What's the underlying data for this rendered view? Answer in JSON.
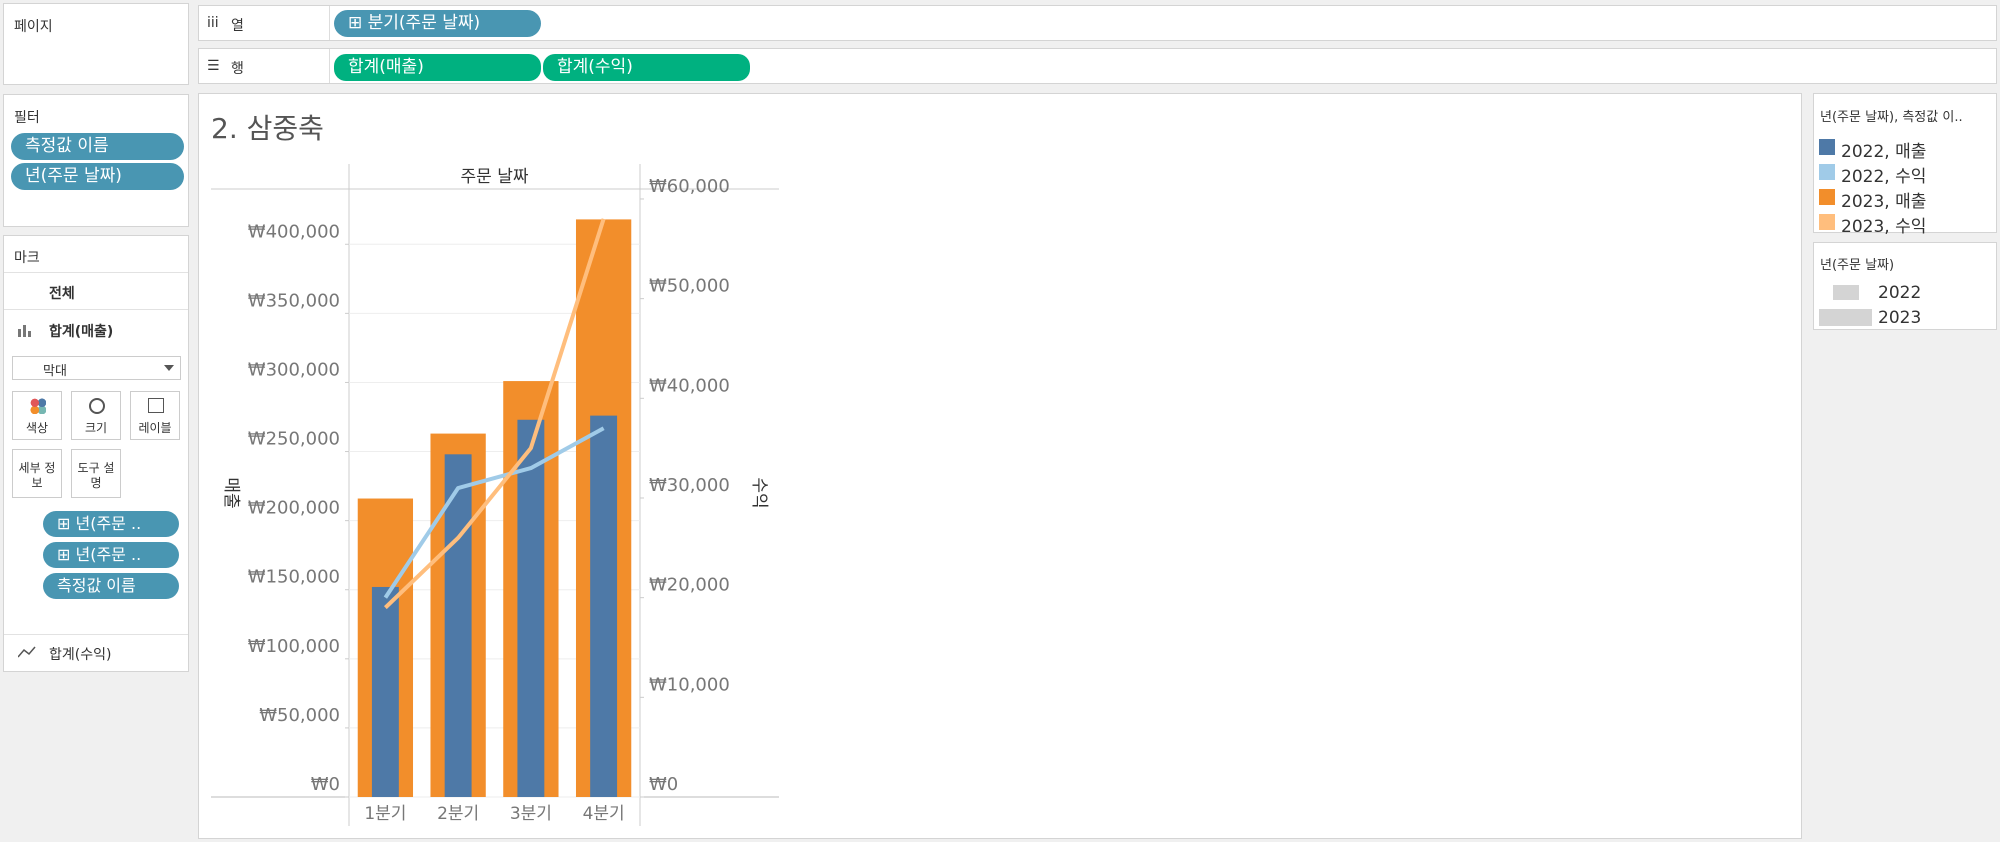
{
  "pages": {
    "title": "페이지"
  },
  "columns_shelf": {
    "label": "열",
    "pills": [
      "⊞ 분기(주문 날짜)"
    ]
  },
  "rows_shelf": {
    "label": "행",
    "pills": [
      "합계(매출)",
      "합계(수익)"
    ]
  },
  "filters": {
    "title": "필터",
    "pills": [
      "측정값 이름",
      "년(주문 날짜)"
    ]
  },
  "marks": {
    "title": "마크",
    "all": "전체",
    "cards": [
      "합계(매출)",
      "합계(수익)"
    ],
    "mark_type": "막대",
    "buttons": [
      "색상",
      "크기",
      "레이블",
      "세부 정보",
      "도구 설명"
    ],
    "pills": [
      "⊞ 년(주문 ..",
      "⊞ 년(주문 ..",
      "측정값 이름"
    ]
  },
  "size_legend": {
    "title": "년(주문 날짜)",
    "items": [
      "2022",
      "2023"
    ]
  },
  "chart_data": {
    "type": "combo",
    "title": "2. 삼중축",
    "x_header": "주문 날짜",
    "ylabel": "매출",
    "y2label": "수익",
    "legend_title": "년(주문 날짜), 측정값 이..",
    "categories": [
      "1분기",
      "2분기",
      "3분기",
      "4분기"
    ],
    "series": [
      {
        "name": "2023, 매출",
        "color": "#f28e2b",
        "type": "bar",
        "values": [
          216000,
          263000,
          301000,
          418000
        ]
      },
      {
        "name": "2022, 매출",
        "color": "#4e79a7",
        "type": "bar",
        "values": [
          152000,
          248000,
          273000,
          276000
        ]
      },
      {
        "name": "2022, 수익",
        "color": "#a0cbe8",
        "type": "line",
        "axis": "y2",
        "values": [
          20000,
          31000,
          33000,
          37000
        ]
      },
      {
        "name": "2023, 수익",
        "color": "#ffbe7d",
        "type": "line",
        "axis": "y2",
        "values": [
          19000,
          26000,
          35000,
          58000
        ]
      }
    ],
    "ylim": [
      0,
      440000
    ],
    "yticks": [
      {
        "value": 0,
        "label": "₩0"
      },
      {
        "value": 50000,
        "label": "₩50,000"
      },
      {
        "value": 100000,
        "label": "₩100,000"
      },
      {
        "value": 150000,
        "label": "₩150,000"
      },
      {
        "value": 200000,
        "label": "₩200,000"
      },
      {
        "value": 250000,
        "label": "₩250,000"
      },
      {
        "value": 300000,
        "label": "₩300,000"
      },
      {
        "value": 350000,
        "label": "₩350,000"
      },
      {
        "value": 400000,
        "label": "₩400,000"
      }
    ],
    "y2lim": [
      0,
      61000
    ],
    "y2ticks": [
      {
        "value": 0,
        "label": "₩0"
      },
      {
        "value": 10000,
        "label": "₩10,000"
      },
      {
        "value": 20000,
        "label": "₩20,000"
      },
      {
        "value": 30000,
        "label": "₩30,000"
      },
      {
        "value": 40000,
        "label": "₩40,000"
      },
      {
        "value": 50000,
        "label": "₩50,000"
      },
      {
        "value": 60000,
        "label": "₩60,000"
      }
    ],
    "legend_order": [
      1,
      2,
      0,
      3
    ],
    "grid": true
  }
}
